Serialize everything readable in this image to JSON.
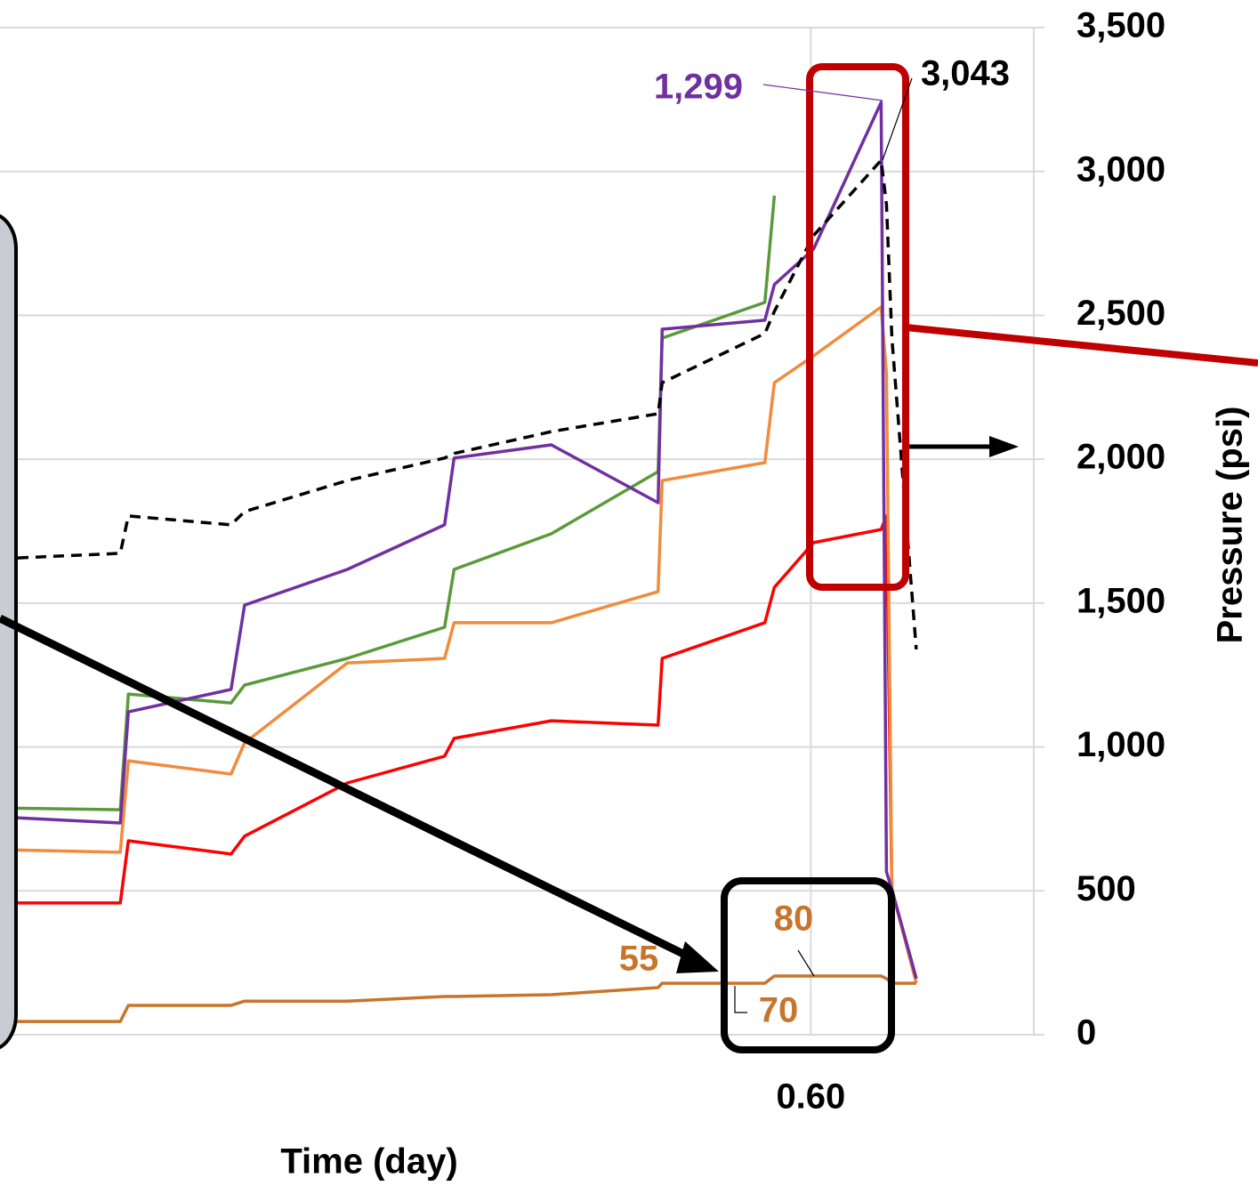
{
  "chart_data": {
    "type": "line",
    "x_label": "Time (day)",
    "y_label": "Pressure (psi)",
    "xlim": [
      0,
      0.765
    ],
    "xticks": [
      {
        "value": 0.6,
        "label": "0.60"
      }
    ],
    "ylim": [
      0,
      3500
    ],
    "yticks": [
      0,
      500,
      {
        "value": 1000,
        "label": "1,000"
      },
      {
        "value": 1500,
        "label": "1,500"
      },
      {
        "value": 2000,
        "label": "2,000"
      },
      {
        "value": 2500,
        "label": "2,500"
      },
      {
        "value": 3000,
        "label": "3,000"
      },
      {
        "value": 3500,
        "label": "3,500"
      }
    ],
    "grid": true,
    "x": [
      0,
      0.089,
      0.095,
      0.171,
      0.181,
      0.257,
      0.329,
      0.336,
      0.408,
      0.487,
      0.49,
      0.566,
      0.573,
      0.602,
      0.652,
      0.656,
      0.66,
      0.678
    ],
    "series": [
      {
        "color": "#ff0000",
        "dashed": false,
        "values": [
          458,
          458,
          674,
          628,
          690,
          875,
          968,
          1030,
          1091,
          1076,
          1308,
          1432,
          1555,
          1710,
          1756,
          1803,
          504,
          195
        ]
      },
      {
        "color": "#f08c3c",
        "dashed": false,
        "values": [
          643,
          634,
          952,
          906,
          1014,
          1292,
          1308,
          1432,
          1432,
          1540,
          1926,
          1988,
          2266,
          2359,
          2529,
          2297,
          504,
          179
        ]
      },
      {
        "color": "#5b9a3a",
        "dashed": false,
        "values": [
          788,
          782,
          1184,
          1153,
          1215,
          1308,
          1416,
          1617,
          1741,
          1957,
          2421,
          2545,
          2916,
          null,
          null,
          null,
          null,
          null
        ]
      },
      {
        "color": "#7030a0",
        "dashed": false,
        "values": [
          757,
          736,
          1122,
          1200,
          1493,
          1617,
          1772,
          2004,
          2050,
          1849,
          2452,
          2483,
          2607,
          2730,
          3240,
          566,
          504,
          195
        ]
      },
      {
        "color": "#000000",
        "dashed": true,
        "values": [
          1654,
          1673,
          1803,
          1772,
          1818,
          1926,
          2004,
          2020,
          2096,
          2158,
          2266,
          2437,
          2514,
          2777,
          3039,
          2885,
          2421,
          1339
        ]
      },
      {
        "color": "#c8742a",
        "dashed": false,
        "values": [
          46,
          46,
          102,
          102,
          117,
          117,
          133,
          133,
          139,
          164,
          179,
          179,
          204,
          204,
          204,
          195,
          179,
          179
        ]
      }
    ],
    "annotations": [
      {
        "text": "1,299",
        "color": "#7030a0"
      },
      {
        "text": "3,043",
        "color": "#000000"
      },
      {
        "text": "55",
        "color": "#c8742a"
      },
      {
        "text": "80",
        "color": "#c8742a"
      },
      {
        "text": "70",
        "color": "#c8742a"
      }
    ]
  }
}
